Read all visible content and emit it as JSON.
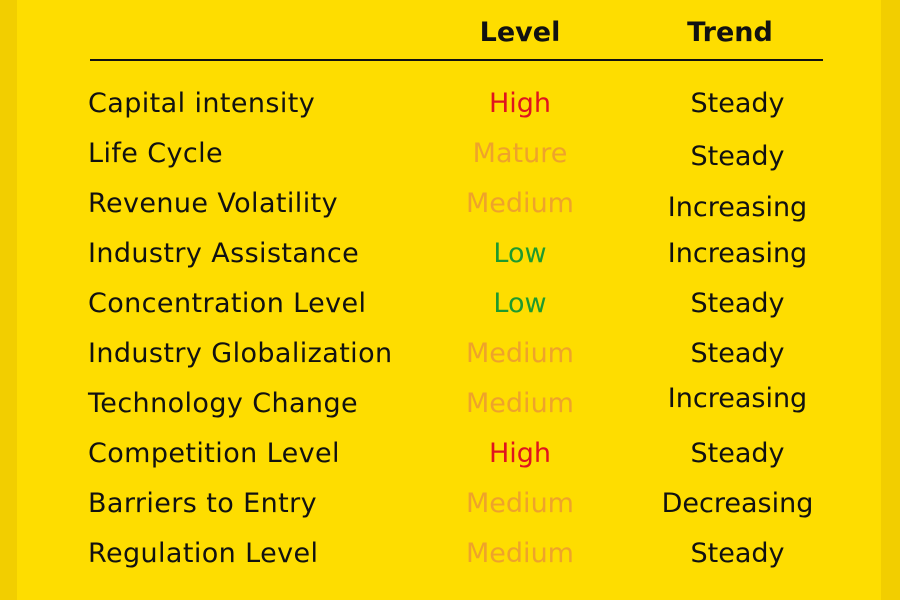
{
  "headers": {
    "level": "Level",
    "trend": "Trend"
  },
  "colors": {
    "background": "#FEDD00",
    "High": "#E0141E",
    "Mature": "#EEA32B",
    "Medium": "#EEA32B",
    "Low": "#1E9A2E",
    "text": "#111111"
  },
  "rows": [
    {
      "name": "Capital intensity",
      "level": "High",
      "trend": "Steady"
    },
    {
      "name": "Life Cycle",
      "level": "Mature",
      "trend": "Steady"
    },
    {
      "name": "Revenue Volatility",
      "level": "Medium",
      "trend": "Increasing"
    },
    {
      "name": "Industry Assistance",
      "level": "Low",
      "trend": "Increasing"
    },
    {
      "name": "Concentration Level",
      "level": "Low",
      "trend": "Steady"
    },
    {
      "name": "Industry Globalization",
      "level": "Medium",
      "trend": "Steady"
    },
    {
      "name": "Technology Change",
      "level": "Medium",
      "trend": "Increasing"
    },
    {
      "name": "Competition Level",
      "level": "High",
      "trend": "Steady"
    },
    {
      "name": "Barriers to Entry",
      "level": "Medium",
      "trend": "Decreasing"
    },
    {
      "name": "Regulation Level",
      "level": "Medium",
      "trend": "Steady"
    }
  ]
}
